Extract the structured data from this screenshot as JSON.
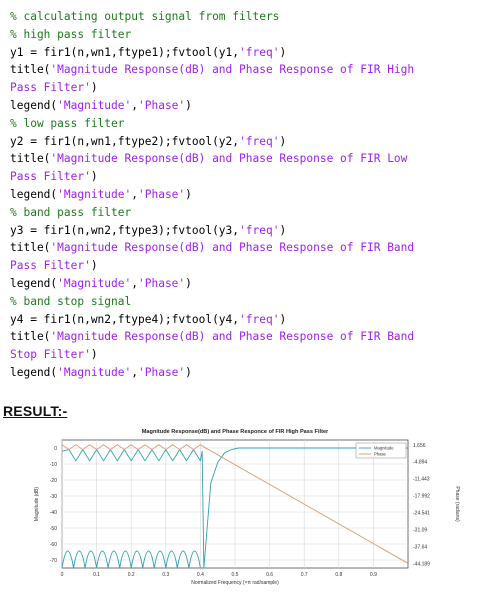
{
  "code_lines": [
    [
      {
        "t": "% calculating output signal from filters",
        "k": "cmt"
      }
    ],
    [
      {
        "t": "% high pass filter",
        "k": "cmt"
      }
    ],
    [
      {
        "t": "y1 = fir1(n,wn1,ftype1);fvtool(y1,",
        "k": ""
      },
      {
        "t": "'freq'",
        "k": "str"
      },
      {
        "t": ")",
        "k": ""
      }
    ],
    [
      {
        "t": "title(",
        "k": ""
      },
      {
        "t": "'Magnitude Response(dB) and Phase Response of FIR High",
        "k": "str"
      }
    ],
    [
      {
        "t": "Pass Filter'",
        "k": "str"
      },
      {
        "t": ")",
        "k": ""
      }
    ],
    [
      {
        "t": "legend(",
        "k": ""
      },
      {
        "t": "'Magnitude'",
        "k": "str"
      },
      {
        "t": ",",
        "k": ""
      },
      {
        "t": "'Phase'",
        "k": "str"
      },
      {
        "t": ")",
        "k": ""
      }
    ],
    [
      {
        "t": "% low pass filter",
        "k": "cmt"
      }
    ],
    [
      {
        "t": "y2 = fir1(n,wn1,ftype2);fvtool(y2,",
        "k": ""
      },
      {
        "t": "'freq'",
        "k": "str"
      },
      {
        "t": ")",
        "k": ""
      }
    ],
    [
      {
        "t": "title(",
        "k": ""
      },
      {
        "t": "'Magnitude Response(dB) and Phase Response of FIR Low",
        "k": "str"
      }
    ],
    [
      {
        "t": "Pass Filter'",
        "k": "str"
      },
      {
        "t": ")",
        "k": ""
      }
    ],
    [
      {
        "t": "legend(",
        "k": ""
      },
      {
        "t": "'Magnitude'",
        "k": "str"
      },
      {
        "t": ",",
        "k": ""
      },
      {
        "t": "'Phase'",
        "k": "str"
      },
      {
        "t": ")",
        "k": ""
      }
    ],
    [
      {
        "t": "% band pass filter",
        "k": "cmt"
      }
    ],
    [
      {
        "t": "y3 = fir1(n,wn2,ftype3);fvtool(y3,",
        "k": ""
      },
      {
        "t": "'freq'",
        "k": "str"
      },
      {
        "t": ")",
        "k": ""
      }
    ],
    [
      {
        "t": "title(",
        "k": ""
      },
      {
        "t": "'Magnitude Response(dB) and Phase Response of FIR Band",
        "k": "str"
      }
    ],
    [
      {
        "t": "Pass Filter'",
        "k": "str"
      },
      {
        "t": ")",
        "k": ""
      }
    ],
    [
      {
        "t": "legend(",
        "k": ""
      },
      {
        "t": "'Magnitude'",
        "k": "str"
      },
      {
        "t": ",",
        "k": ""
      },
      {
        "t": "'Phase'",
        "k": "str"
      },
      {
        "t": ")",
        "k": ""
      }
    ],
    [
      {
        "t": "% band stop signal",
        "k": "cmt"
      }
    ],
    [
      {
        "t": "y4 = fir1(n,wn2,ftype4);fvtool(y4,",
        "k": ""
      },
      {
        "t": "'freq'",
        "k": "str"
      },
      {
        "t": ")",
        "k": ""
      }
    ],
    [
      {
        "t": "title(",
        "k": ""
      },
      {
        "t": "'Magnitude Response(dB) and Phase Response of FIR Band",
        "k": "str"
      }
    ],
    [
      {
        "t": "Stop Filter'",
        "k": "str"
      },
      {
        "t": ")",
        "k": ""
      }
    ],
    [
      {
        "t": "legend(",
        "k": ""
      },
      {
        "t": "'Magnitude'",
        "k": "str"
      },
      {
        "t": ",",
        "k": ""
      },
      {
        "t": "'Phase'",
        "k": "str"
      },
      {
        "t": ")",
        "k": ""
      }
    ]
  ],
  "colors": {
    "comment": "#1e7a1e",
    "string": "#a020f0",
    "magnitude": "#2ea3b0",
    "phase": "#d99a6c"
  },
  "result_heading": "RESULT:-",
  "chart_data": {
    "type": "line",
    "title": "Magnitude Response(dB) and Phase Responce of FIR High Pass Filter",
    "xlabel": "Normalized Frequency (×π rad/sample)",
    "ylabel": "Magnitude (dB)",
    "ylabel_right": "Phase (radians)",
    "xlim": [
      0,
      1
    ],
    "ylim": [
      -75,
      5
    ],
    "ylim_right": [
      -46.0,
      3.5
    ],
    "x_ticks": [
      0,
      0.1,
      0.2,
      0.3,
      0.4,
      0.5,
      0.6,
      0.7,
      0.8,
      0.9
    ],
    "x_tick_labels": [
      "0",
      "0.1",
      "0.2",
      "0.3",
      "0.4",
      "0.5",
      "0.6",
      "0.7",
      "0.8",
      "0.9"
    ],
    "y_ticks": [
      0,
      -10,
      -20,
      -30,
      -40,
      -50,
      -60,
      -70
    ],
    "y_tick_labels": [
      "0",
      "-10",
      "-20",
      "-30",
      "-40",
      "-50",
      "-60",
      "-70"
    ],
    "y_right_ticks": [
      1.656,
      -4.894,
      -11.443,
      -17.992,
      -24.541,
      -31.09,
      -37.64,
      -44.189
    ],
    "y_right_tick_labels": [
      "1.656",
      "-4.894",
      "-11.443",
      "-17.992",
      "-24.541",
      "-31.09",
      "-37.64",
      "-44.189"
    ],
    "grid": true,
    "legend": {
      "position": "top-right",
      "entries": [
        "Magnitude",
        "Phase"
      ]
    },
    "series": [
      {
        "name": "Magnitude",
        "axis": "left",
        "x": [
          0,
          0.02,
          0.04,
          0.06,
          0.08,
          0.1,
          0.12,
          0.14,
          0.16,
          0.18,
          0.2,
          0.22,
          0.24,
          0.26,
          0.28,
          0.3,
          0.32,
          0.34,
          0.36,
          0.38,
          0.4,
          0.405,
          0.41,
          0.43,
          0.45,
          0.47,
          0.49,
          0.51,
          0.55,
          0.6,
          0.7,
          0.8,
          0.9,
          1.0
        ],
        "y": [
          -2,
          -1,
          -8,
          -1,
          -8,
          -1,
          -8,
          -1,
          -8,
          -1,
          -8,
          -1,
          -8,
          -1,
          -8,
          -1,
          -8,
          -1,
          -8,
          -1,
          -8,
          -2,
          -75,
          -22,
          -9,
          -3,
          -1,
          0,
          0,
          0,
          0,
          0,
          0,
          0
        ]
      },
      {
        "name": "Phase",
        "axis": "right",
        "x": [
          0,
          0.02,
          0.04,
          0.06,
          0.08,
          0.1,
          0.12,
          0.14,
          0.16,
          0.18,
          0.2,
          0.22,
          0.24,
          0.26,
          0.28,
          0.3,
          0.32,
          0.34,
          0.36,
          0.38,
          0.4,
          0.405,
          1.0
        ],
        "y": [
          1.656,
          -0.2,
          1.656,
          -0.2,
          1.656,
          -0.2,
          1.656,
          -0.2,
          1.656,
          -0.2,
          1.656,
          -0.2,
          1.656,
          -0.2,
          1.656,
          -0.2,
          1.656,
          -0.2,
          1.656,
          -0.2,
          1.656,
          1.2,
          -44.189
        ]
      }
    ],
    "band_lobes": {
      "x_start": 0.0,
      "x_end": 0.4,
      "count": 12,
      "peak": -60,
      "floor": -75
    }
  }
}
